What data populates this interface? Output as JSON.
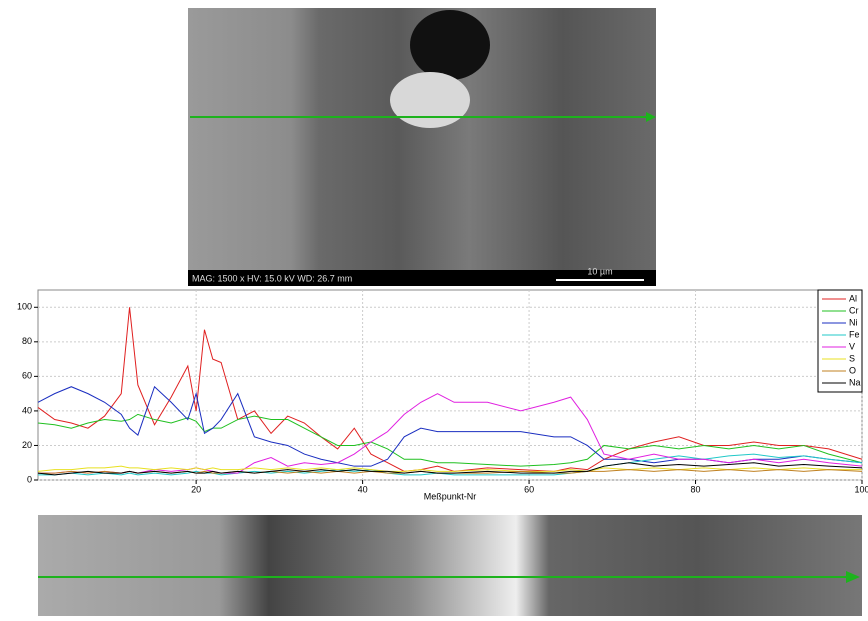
{
  "top_image": {
    "info": "MAG: 1500 x   HV: 15.0 kV   WD: 26.7 mm",
    "scale": "10 µm"
  },
  "chart_data": {
    "type": "line",
    "x_label": "Meßpunkt-Nr",
    "x": [
      1,
      3,
      5,
      7,
      9,
      11,
      12,
      13,
      15,
      17,
      19,
      20,
      21,
      22,
      23,
      25,
      27,
      29,
      31,
      33,
      35,
      37,
      39,
      41,
      43,
      45,
      47,
      49,
      51,
      55,
      59,
      63,
      65,
      67,
      69,
      72,
      75,
      78,
      81,
      84,
      87,
      90,
      93,
      96,
      100
    ],
    "xlim": [
      1,
      100
    ],
    "xticks": [
      20,
      40,
      60,
      80,
      100
    ],
    "ylim": [
      0,
      110
    ],
    "yticks": [
      0,
      20,
      40,
      60,
      80,
      100
    ],
    "grid": true,
    "legend": "top-right",
    "series": [
      {
        "name": "Al",
        "color": "#e02020",
        "values": [
          42,
          35,
          33,
          30,
          37,
          50,
          100,
          55,
          32,
          48,
          66,
          40,
          87,
          70,
          68,
          35,
          40,
          27,
          37,
          33,
          25,
          18,
          30,
          15,
          10,
          5,
          6,
          8,
          5,
          7,
          6,
          5,
          7,
          6,
          12,
          18,
          22,
          25,
          20,
          20,
          22,
          20,
          20,
          18,
          12
        ]
      },
      {
        "name": "Cr",
        "color": "#20c020",
        "values": [
          33,
          32,
          30,
          33,
          35,
          34,
          35,
          38,
          35,
          33,
          36,
          34,
          28,
          30,
          30,
          35,
          37,
          35,
          35,
          30,
          25,
          20,
          20,
          22,
          18,
          12,
          12,
          10,
          10,
          9,
          8,
          9,
          10,
          12,
          20,
          18,
          20,
          18,
          20,
          18,
          20,
          18,
          20,
          15,
          10
        ]
      },
      {
        "name": "Ni",
        "color": "#1a2ec0",
        "values": [
          45,
          50,
          54,
          50,
          45,
          38,
          30,
          26,
          54,
          45,
          35,
          50,
          27,
          30,
          35,
          50,
          25,
          22,
          20,
          15,
          12,
          10,
          8,
          8,
          12,
          25,
          30,
          28,
          28,
          28,
          28,
          25,
          25,
          20,
          12,
          12,
          10,
          12,
          12,
          10,
          12,
          12,
          14,
          12,
          10
        ]
      },
      {
        "name": "Fe",
        "color": "#20c8c8",
        "values": [
          3,
          3,
          4,
          3,
          4,
          3,
          4,
          3,
          4,
          3,
          4,
          5,
          4,
          4,
          3,
          4,
          5,
          4,
          5,
          4,
          5,
          6,
          5,
          6,
          4,
          3,
          3,
          4,
          3,
          3,
          3,
          3,
          4,
          5,
          8,
          10,
          12,
          14,
          12,
          14,
          15,
          13,
          14,
          12,
          10
        ]
      },
      {
        "name": "V",
        "color": "#e020e0",
        "values": [
          4,
          4,
          5,
          4,
          5,
          4,
          5,
          4,
          6,
          5,
          6,
          7,
          6,
          5,
          4,
          4,
          10,
          13,
          8,
          10,
          9,
          10,
          15,
          22,
          28,
          38,
          45,
          50,
          45,
          45,
          40,
          45,
          48,
          35,
          15,
          12,
          15,
          12,
          12,
          10,
          12,
          10,
          12,
          10,
          8
        ]
      },
      {
        "name": "S",
        "color": "#e8e020",
        "values": [
          5,
          6,
          6,
          7,
          7,
          8,
          7,
          7,
          6,
          7,
          6,
          7,
          6,
          7,
          6,
          6,
          7,
          6,
          7,
          6,
          7,
          6,
          7,
          6,
          5,
          5,
          6,
          5,
          5,
          6,
          5,
          5,
          6,
          5,
          7,
          6,
          7,
          6,
          7,
          6,
          7,
          6,
          7,
          6,
          6
        ]
      },
      {
        "name": "O",
        "color": "#c08020",
        "values": [
          4,
          4,
          5,
          4,
          5,
          4,
          5,
          4,
          5,
          4,
          5,
          4,
          5,
          4,
          4,
          5,
          4,
          5,
          4,
          5,
          4,
          5,
          4,
          5,
          4,
          4,
          5,
          4,
          4,
          4,
          5,
          4,
          4,
          5,
          5,
          6,
          5,
          6,
          5,
          6,
          5,
          6,
          5,
          6,
          5
        ]
      },
      {
        "name": "Na",
        "color": "#000000",
        "values": [
          4,
          3,
          4,
          5,
          4,
          4,
          5,
          4,
          5,
          4,
          5,
          4,
          4,
          5,
          4,
          5,
          4,
          5,
          6,
          5,
          6,
          5,
          6,
          5,
          5,
          4,
          5,
          4,
          4,
          5,
          4,
          4,
          5,
          5,
          8,
          10,
          8,
          9,
          8,
          9,
          10,
          8,
          9,
          8,
          7
        ]
      }
    ]
  }
}
